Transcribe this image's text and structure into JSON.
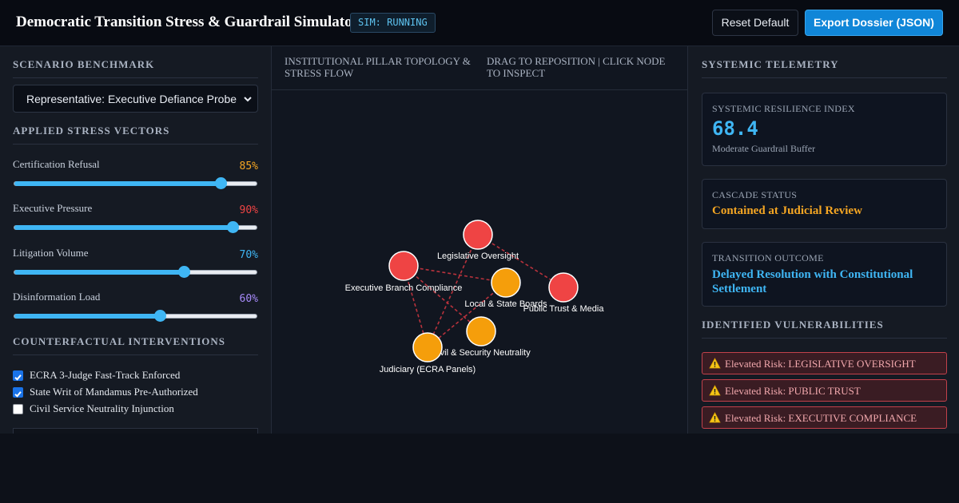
{
  "header": {
    "title": "Democratic Transition Stress & Guardrail Simulator",
    "status_badge": "SIM: RUNNING",
    "reset_label": "Reset Default",
    "export_label": "Export Dossier (JSON)"
  },
  "left": {
    "scenario_title": "SCENARIO BENCHMARK",
    "scenario_selected": "Representative: Executive Defiance Probe",
    "stress_title": "APPLIED STRESS VECTORS",
    "sliders": [
      {
        "label": "Certification Refusal",
        "value_text": "85%",
        "value": 85,
        "color": "#f5a623"
      },
      {
        "label": "Executive Pressure",
        "value_text": "90%",
        "value": 90,
        "color": "#ef4444"
      },
      {
        "label": "Litigation Volume",
        "value_text": "70%",
        "value": 70,
        "color": "#3fb6f4"
      },
      {
        "label": "Disinformation Load",
        "value_text": "60%",
        "value": 60,
        "color": "#a78bfa"
      }
    ],
    "interventions_title": "COUNTERFACTUAL INTERVENTIONS",
    "interventions": [
      {
        "label": "ECRA 3-Judge Fast-Track Enforced",
        "checked": true
      },
      {
        "label": "State Writ of Mandamus Pre-Authorized",
        "checked": true
      },
      {
        "label": "Civil Service Neutrality Injunction",
        "checked": false
      }
    ]
  },
  "middle": {
    "title": "INSTITUTIONAL PILLAR TOPOLOGY & STRESS FLOW",
    "hint": "DRAG TO REPOSITION | CLICK NODE TO INSPECT",
    "nodes": [
      {
        "id": "leg",
        "label": "Legislative Oversight",
        "status": "critical"
      },
      {
        "id": "exec",
        "label": "Executive Branch Compliance",
        "status": "critical"
      },
      {
        "id": "local",
        "label": "Local & State Boards",
        "status": "warning"
      },
      {
        "id": "trust",
        "label": "Public Trust & Media",
        "status": "critical"
      },
      {
        "id": "civil",
        "label": "Civil & Security Neutrality",
        "status": "warning"
      },
      {
        "id": "jud",
        "label": "Judiciary (ECRA Panels)",
        "status": "warning"
      }
    ],
    "edges": [
      [
        "leg",
        "trust"
      ],
      [
        "leg",
        "jud"
      ],
      [
        "exec",
        "local"
      ],
      [
        "exec",
        "jud"
      ],
      [
        "exec",
        "civil"
      ],
      [
        "local",
        "jud"
      ]
    ],
    "status_colors": {
      "critical": "#ef4444",
      "warning": "#f59e0b"
    }
  },
  "right": {
    "telemetry_title": "SYSTEMIC TELEMETRY",
    "resilience_label": "SYSTEMIC RESILIENCE INDEX",
    "resilience_value": "68.4",
    "resilience_sub": "Moderate Guardrail Buffer",
    "cascade_label": "CASCADE STATUS",
    "cascade_value": "Contained at Judicial Review",
    "outcome_label": "TRANSITION OUTCOME",
    "outcome_value": "Delayed Resolution with Constitutional Settlement",
    "vuln_title": "IDENTIFIED VULNERABILITIES",
    "vulnerabilities": [
      "Elevated Risk: LEGISLATIVE OVERSIGHT",
      "Elevated Risk: PUBLIC TRUST",
      "Elevated Risk: EXECUTIVE COMPLIANCE"
    ]
  }
}
